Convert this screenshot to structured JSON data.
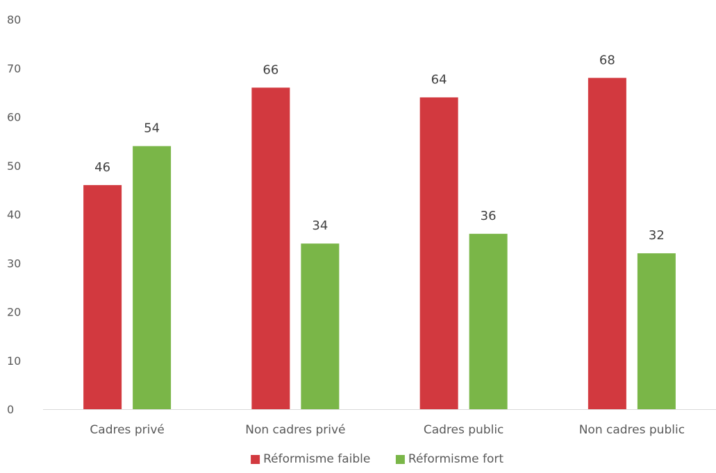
{
  "chart_data": {
    "type": "bar",
    "categories": [
      "Cadres privé",
      "Non cadres privé",
      "Cadres public",
      "Non cadres public"
    ],
    "series": [
      {
        "name": "Réformisme faible",
        "values": [
          46,
          66,
          64,
          68
        ],
        "color": "#d2393f"
      },
      {
        "name": "Réformisme fort",
        "values": [
          54,
          34,
          36,
          32
        ],
        "color": "#7ab648"
      }
    ],
    "ylim": [
      0,
      80
    ],
    "yticks": [
      "0",
      "10",
      "20",
      "30",
      "40",
      "50",
      "60",
      "70",
      "80"
    ],
    "grid": false,
    "legend": "bottom"
  }
}
